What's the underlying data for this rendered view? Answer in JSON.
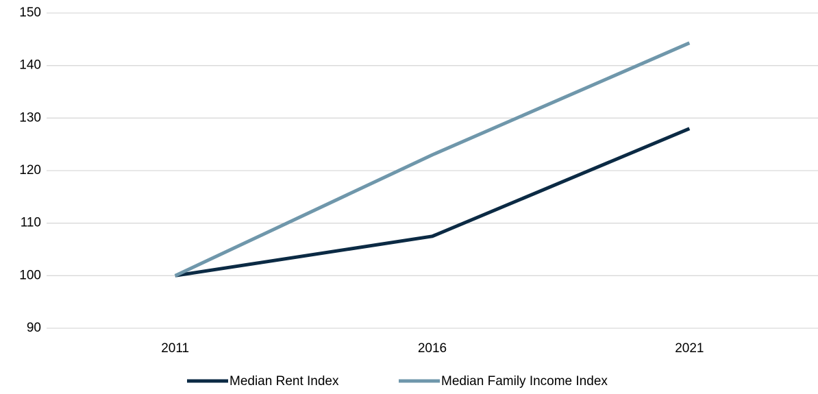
{
  "chart_data": {
    "type": "line",
    "categories": [
      "2011",
      "2016",
      "2021"
    ],
    "series": [
      {
        "name": "Median Rent Index",
        "color": "#0b2a44",
        "values": [
          100,
          107.5,
          128
        ]
      },
      {
        "name": "Median Family Income Index",
        "color": "#6f97ab",
        "values": [
          100,
          123,
          144.3
        ]
      }
    ],
    "ylim": [
      90,
      150
    ],
    "yticks": [
      90,
      100,
      110,
      120,
      130,
      140,
      150
    ],
    "grid": true,
    "legend": "bottom"
  }
}
